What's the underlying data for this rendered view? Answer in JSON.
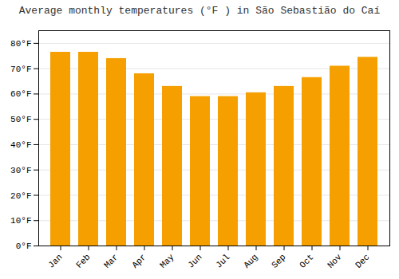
{
  "chart_data": {
    "type": "bar",
    "title": "Average monthly temperatures (°F ) in São Sebastião do Caí",
    "categories": [
      "Jan",
      "Feb",
      "Mar",
      "Apr",
      "May",
      "Jun",
      "Jul",
      "Aug",
      "Sep",
      "Oct",
      "Nov",
      "Dec"
    ],
    "values": [
      76.5,
      76.5,
      74.0,
      68.0,
      63.0,
      59.0,
      59.0,
      60.5,
      63.0,
      66.5,
      71.0,
      74.5
    ],
    "color": "#F5A000",
    "ylim": [
      0,
      85
    ],
    "yticks": [
      {
        "value": 0,
        "label": "0°F"
      },
      {
        "value": 10,
        "label": "10°F"
      },
      {
        "value": 20,
        "label": "20°F"
      },
      {
        "value": 30,
        "label": "30°F"
      },
      {
        "value": 40,
        "label": "40°F"
      },
      {
        "value": 50,
        "label": "50°F"
      },
      {
        "value": 60,
        "label": "60°F"
      },
      {
        "value": 70,
        "label": "70°F"
      },
      {
        "value": 80,
        "label": "80°F"
      }
    ],
    "grid": true
  }
}
